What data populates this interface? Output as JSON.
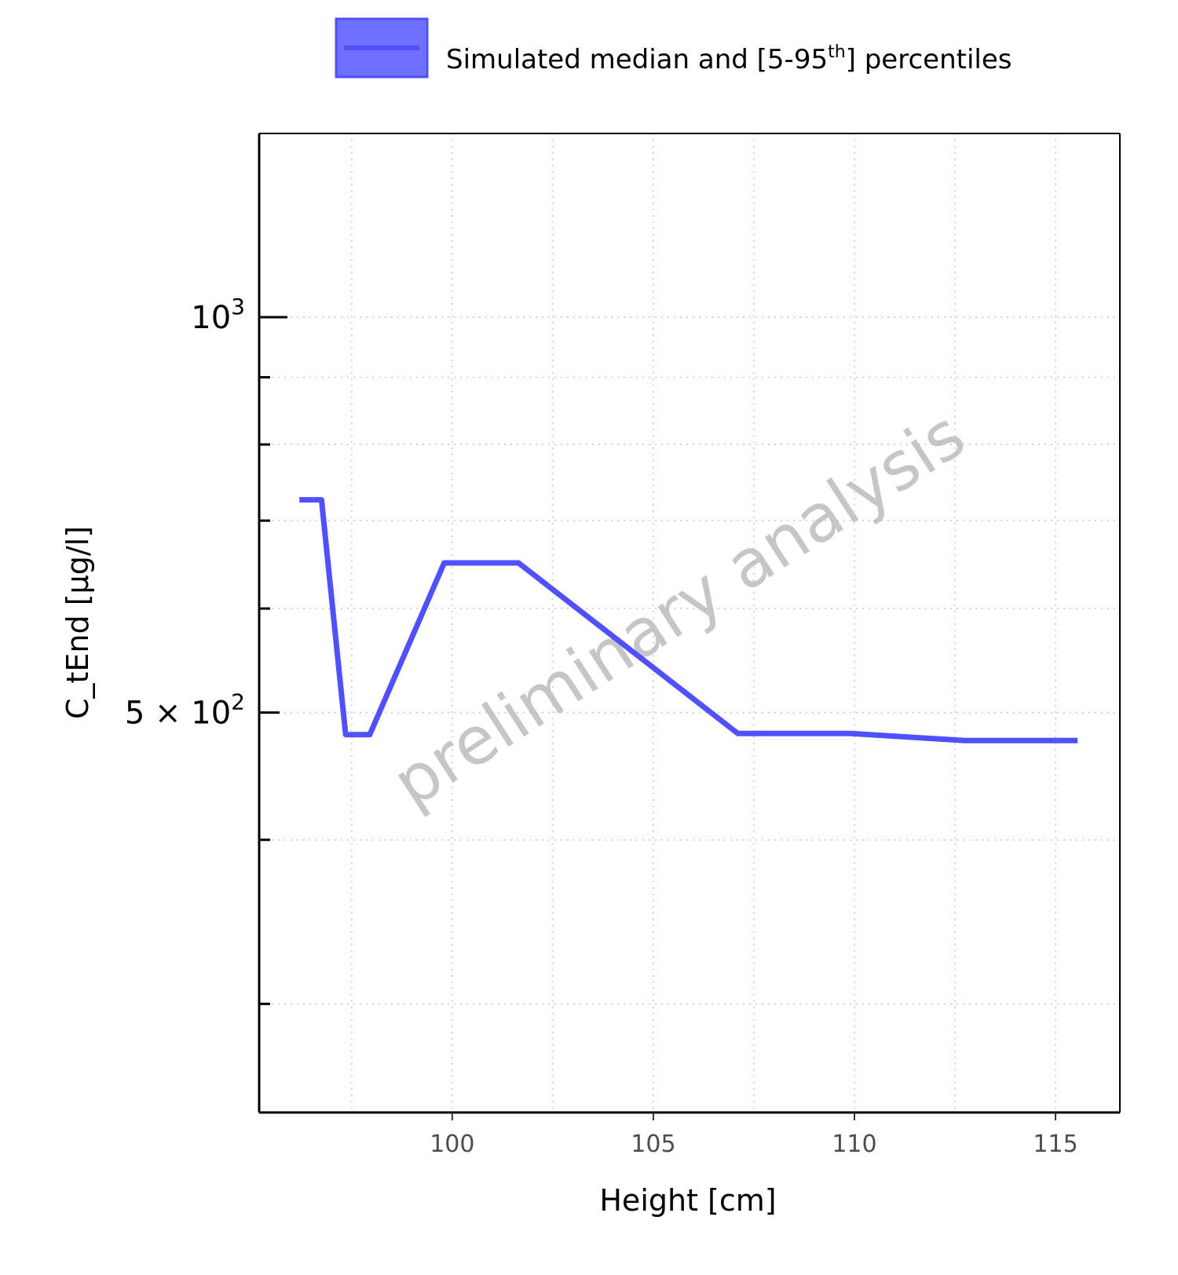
{
  "chart_data": {
    "type": "line",
    "xlabel": "Height [cm]",
    "ylabel": "C_tEnd [µg/l]",
    "x_scale": "linear",
    "y_scale": "log",
    "xlim": [
      95.2,
      116.6
    ],
    "ylim": [
      248,
      1380
    ],
    "x_ticks": [
      100,
      105,
      110,
      115
    ],
    "x_tick_labels": [
      "100",
      "105",
      "110",
      "115"
    ],
    "y_ticks": [
      {
        "value": 1000,
        "base": "10",
        "exp": "3",
        "prefix": ""
      },
      {
        "value": 500,
        "base": "10",
        "exp": "2",
        "prefix": "5 × "
      }
    ],
    "y_minor_ticks": [
      300,
      400,
      600,
      700,
      800,
      900
    ],
    "grid": true,
    "legend": {
      "position": "top",
      "entries": [
        {
          "text": "Simulated median and [5-95",
          "sup": "th",
          "after": "] percentiles",
          "color": "#5050ff"
        }
      ]
    },
    "watermark": "preliminary analysis",
    "series": [
      {
        "color": "#5050ff",
        "ribbon_color": "#7070ff",
        "points": [
          {
            "x": 96.2,
            "y": 726
          },
          {
            "x": 96.75,
            "y": 726
          },
          {
            "x": 97.35,
            "y": 481
          },
          {
            "x": 97.95,
            "y": 481
          },
          {
            "x": 99.8,
            "y": 650
          },
          {
            "x": 101.65,
            "y": 650
          },
          {
            "x": 107.1,
            "y": 482
          },
          {
            "x": 109.9,
            "y": 482
          },
          {
            "x": 112.75,
            "y": 476
          },
          {
            "x": 115.55,
            "y": 476
          }
        ]
      }
    ]
  }
}
